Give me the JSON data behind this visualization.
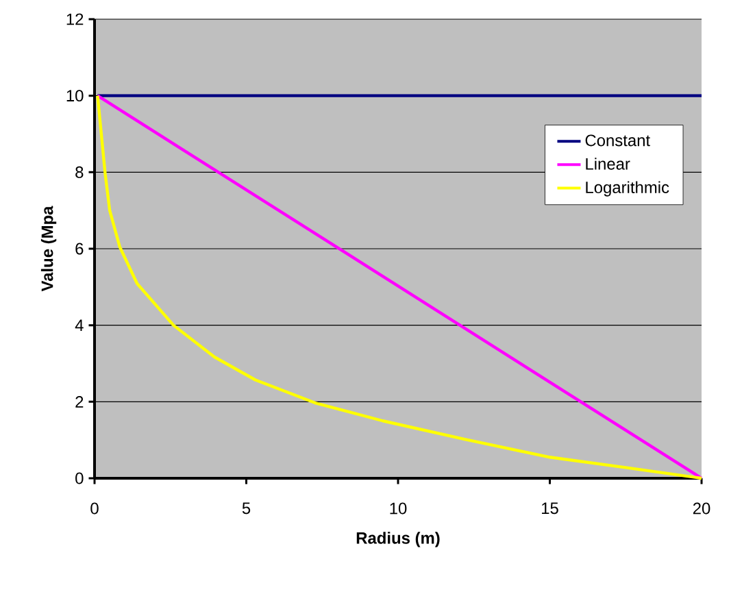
{
  "chart_data": {
    "type": "line",
    "xlabel": "Radius (m)",
    "ylabel": "Value (Mpa",
    "xlim": [
      0,
      20
    ],
    "ylim": [
      0,
      12
    ],
    "xticks": [
      0,
      5,
      10,
      15,
      20
    ],
    "yticks": [
      0,
      2,
      4,
      6,
      8,
      10,
      12
    ],
    "grid": "y",
    "legend": "right",
    "marker": "none",
    "line_style": "solid",
    "series": [
      {
        "name": "Constant",
        "color": "#000080",
        "x": [
          0.1,
          20
        ],
        "values": [
          10,
          10
        ]
      },
      {
        "name": "Linear",
        "color": "#ff00ff",
        "x": [
          0.1,
          20
        ],
        "values": [
          10,
          0
        ]
      },
      {
        "name": "Logarithmic",
        "color": "#ffff00",
        "x": [
          0.1,
          0.35,
          0.5,
          0.83,
          1.4,
          2.6,
          3.95,
          5.3,
          7.27,
          9.5,
          12.2,
          15,
          17.5,
          20
        ],
        "values": [
          10,
          7.96,
          7.0,
          6.05,
          5.09,
          4.0,
          3.17,
          2.57,
          1.97,
          1.5,
          1.02,
          0.55,
          0.28,
          0
        ]
      }
    ]
  }
}
